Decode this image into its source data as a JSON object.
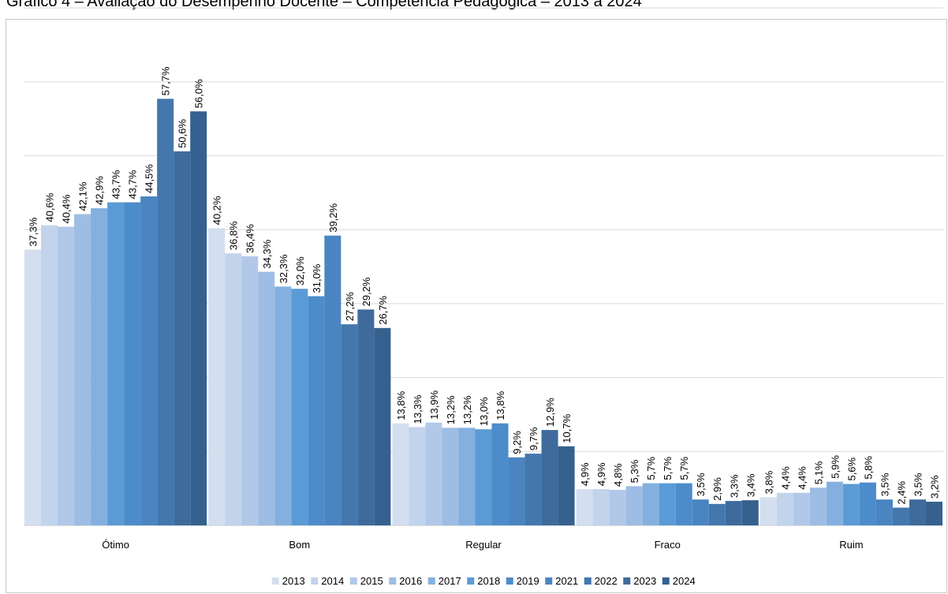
{
  "chart_data": {
    "type": "bar",
    "title": "Gráfico 4 – Avaliação do Desempenho Docente – Competência Pedagógica – 2013 a 2024",
    "categories": [
      "Ótimo",
      "Bom",
      "Regular",
      "Fraco",
      "Ruim"
    ],
    "ylim": [
      0,
      70
    ],
    "grid": true,
    "legend_position": "bottom",
    "series": [
      {
        "name": "2013",
        "color": "#d3deef",
        "values": [
          37.3,
          40.2,
          13.8,
          4.9,
          3.8
        ],
        "labels": [
          "37,3%",
          "40,2%",
          "13,8%",
          "4,9%",
          "3,8%"
        ]
      },
      {
        "name": "2014",
        "color": "#c2d3ec",
        "values": [
          40.6,
          36.8,
          13.3,
          4.9,
          4.4
        ],
        "labels": [
          "40,6%",
          "36,8%",
          "13,3%",
          "4,9%",
          "4,4%"
        ]
      },
      {
        "name": "2015",
        "color": "#b2c8e8",
        "values": [
          40.4,
          36.4,
          13.9,
          4.8,
          4.4
        ],
        "labels": [
          "40,4%",
          "36,4%",
          "13,9%",
          "4,8%",
          "4,4%"
        ]
      },
      {
        "name": "2016",
        "color": "#9ebde4",
        "values": [
          42.1,
          34.3,
          13.2,
          5.3,
          5.1
        ],
        "labels": [
          "42,1%",
          "34,3%",
          "13,2%",
          "5,3%",
          "5,1%"
        ]
      },
      {
        "name": "2017",
        "color": "#84b0e0",
        "values": [
          42.9,
          32.3,
          13.2,
          5.7,
          5.9
        ],
        "labels": [
          "42,9%",
          "32,3%",
          "13,2%",
          "5,7%",
          "5,9%"
        ]
      },
      {
        "name": "2018",
        "color": "#5b9bd5",
        "values": [
          43.7,
          32.0,
          13.0,
          5.7,
          5.6
        ],
        "labels": [
          "43,7%",
          "32,0%",
          "13,0%",
          "5,7%",
          "5,6%"
        ]
      },
      {
        "name": "2019",
        "color": "#4d8ccb",
        "values": [
          43.7,
          31.0,
          13.8,
          5.7,
          5.8
        ],
        "labels": [
          "43,7%",
          "31,0%",
          "13,8%",
          "5,7%",
          "5,8%"
        ]
      },
      {
        "name": "2021",
        "color": "#4a85c2",
        "values": [
          44.5,
          39.2,
          9.2,
          3.5,
          3.5
        ],
        "labels": [
          "44,5%",
          "39,2%",
          "9,2%",
          "3,5%",
          "3,5%"
        ]
      },
      {
        "name": "2022",
        "color": "#4477ad",
        "values": [
          57.7,
          27.2,
          9.7,
          2.9,
          2.4
        ],
        "labels": [
          "57,7%",
          "27,2%",
          "9,7%",
          "2,9%",
          "2,4%"
        ]
      },
      {
        "name": "2023",
        "color": "#3e6b9c",
        "values": [
          50.6,
          29.2,
          12.9,
          3.3,
          3.5
        ],
        "labels": [
          "50,6%",
          "29,2%",
          "12,9%",
          "3,3%",
          "3,5%"
        ]
      },
      {
        "name": "2024",
        "color": "#36618f",
        "values": [
          56.0,
          26.7,
          10.7,
          3.4,
          3.2
        ],
        "labels": [
          "56,0%",
          "26,7%",
          "10,7%",
          "3,4%",
          "3,2%"
        ]
      }
    ]
  }
}
